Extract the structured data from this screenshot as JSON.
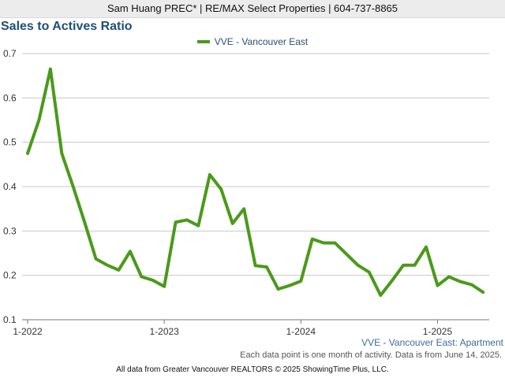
{
  "header": {
    "agent_text": "Sam Huang PREC* | RE/MAX Select Properties | 604-737-8865"
  },
  "colors": {
    "series": "#4a9a1a",
    "title": "#1f4e79",
    "grid": "#c8c8c8"
  },
  "chart_data": {
    "type": "line",
    "title": "Sales to Actives Ratio",
    "xlabel": "",
    "ylabel": "",
    "ylim": [
      0.1,
      0.7
    ],
    "yticks": [
      "0.1",
      "0.2",
      "0.3",
      "0.4",
      "0.5",
      "0.6",
      "0.7"
    ],
    "xticks": [
      "1-2022",
      "1-2023",
      "1-2024",
      "1-2025"
    ],
    "grid": "horizontal",
    "legend_position": "top-center",
    "x": [
      "2022-01",
      "2022-02",
      "2022-03",
      "2022-04",
      "2022-05",
      "2022-06",
      "2022-07",
      "2022-08",
      "2022-09",
      "2022-10",
      "2022-11",
      "2022-12",
      "2023-01",
      "2023-02",
      "2023-03",
      "2023-04",
      "2023-05",
      "2023-06",
      "2023-07",
      "2023-08",
      "2023-09",
      "2023-10",
      "2023-11",
      "2023-12",
      "2024-01",
      "2024-02",
      "2024-03",
      "2024-04",
      "2024-05",
      "2024-06",
      "2024-07",
      "2024-08",
      "2024-09",
      "2024-10",
      "2024-11",
      "2024-12",
      "2025-01",
      "2025-02",
      "2025-03",
      "2025-04",
      "2025-05"
    ],
    "series": [
      {
        "name": "VVE - Vancouver East",
        "values": [
          0.475,
          0.55,
          0.665,
          0.475,
          0.4,
          0.32,
          0.237,
          0.223,
          0.212,
          0.254,
          0.197,
          0.189,
          0.175,
          0.32,
          0.325,
          0.312,
          0.427,
          0.394,
          0.317,
          0.35,
          0.222,
          0.219,
          0.169,
          0.177,
          0.187,
          0.282,
          0.273,
          0.273,
          0.248,
          0.223,
          0.207,
          0.155,
          0.188,
          0.223,
          0.223,
          0.264,
          0.177,
          0.197,
          0.186,
          0.179,
          0.162
        ]
      }
    ]
  },
  "captions": {
    "series_caption": "VVE - Vancouver East: Apartment",
    "data_note": "Each data point is one month of activity. Data is from June 14, 2025.",
    "source": "All data from Greater Vancouver REALTORS © 2025 ShowingTime Plus, LLC."
  }
}
